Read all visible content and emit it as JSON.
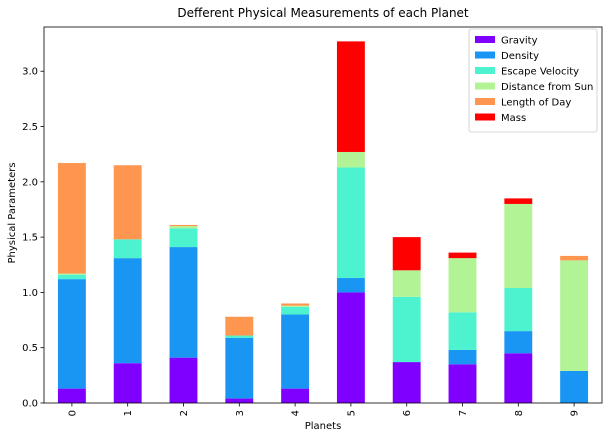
{
  "chart_data": {
    "type": "bar",
    "stacked": true,
    "title": "Defferent Physical Measurements of each Planet",
    "xlabel": "Planets",
    "ylabel": "Physical Parameters",
    "categories": [
      "0",
      "1",
      "2",
      "3",
      "4",
      "5",
      "6",
      "7",
      "8",
      "9"
    ],
    "ylim": [
      0,
      3.4
    ],
    "yticks": [
      0.0,
      0.5,
      1.0,
      1.5,
      2.0,
      2.5,
      3.0
    ],
    "ytick_labels": [
      "0.0",
      "0.5",
      "1.0",
      "1.5",
      "2.0",
      "2.5",
      "3.0"
    ],
    "grid": false,
    "legend_position": "top-right",
    "series": [
      {
        "name": "Gravity",
        "color": "#8000ff",
        "values": [
          0.13,
          0.36,
          0.41,
          0.04,
          0.13,
          1.0,
          0.37,
          0.35,
          0.45,
          0.0
        ]
      },
      {
        "name": "Density",
        "color": "#1996f3",
        "values": [
          0.99,
          0.95,
          1.0,
          0.55,
          0.67,
          0.13,
          0.0,
          0.13,
          0.2,
          0.29
        ]
      },
      {
        "name": "Escape Velocity",
        "color": "#4df3ce",
        "values": [
          0.04,
          0.17,
          0.17,
          0.02,
          0.07,
          1.0,
          0.59,
          0.34,
          0.39,
          0.0
        ]
      },
      {
        "name": "Distance from Sun",
        "color": "#b2f396",
        "values": [
          0.01,
          0.0,
          0.02,
          0.0,
          0.01,
          0.14,
          0.24,
          0.49,
          0.76,
          1.0
        ]
      },
      {
        "name": "Length of Day",
        "color": "#ff964f",
        "values": [
          1.0,
          0.67,
          0.01,
          0.17,
          0.02,
          0.0,
          0.0,
          0.0,
          0.0,
          0.04
        ]
      },
      {
        "name": "Mass",
        "color": "#ff0000",
        "values": [
          0.0,
          0.0,
          0.0,
          0.0,
          0.0,
          1.0,
          0.3,
          0.05,
          0.05,
          0.0
        ]
      }
    ]
  }
}
